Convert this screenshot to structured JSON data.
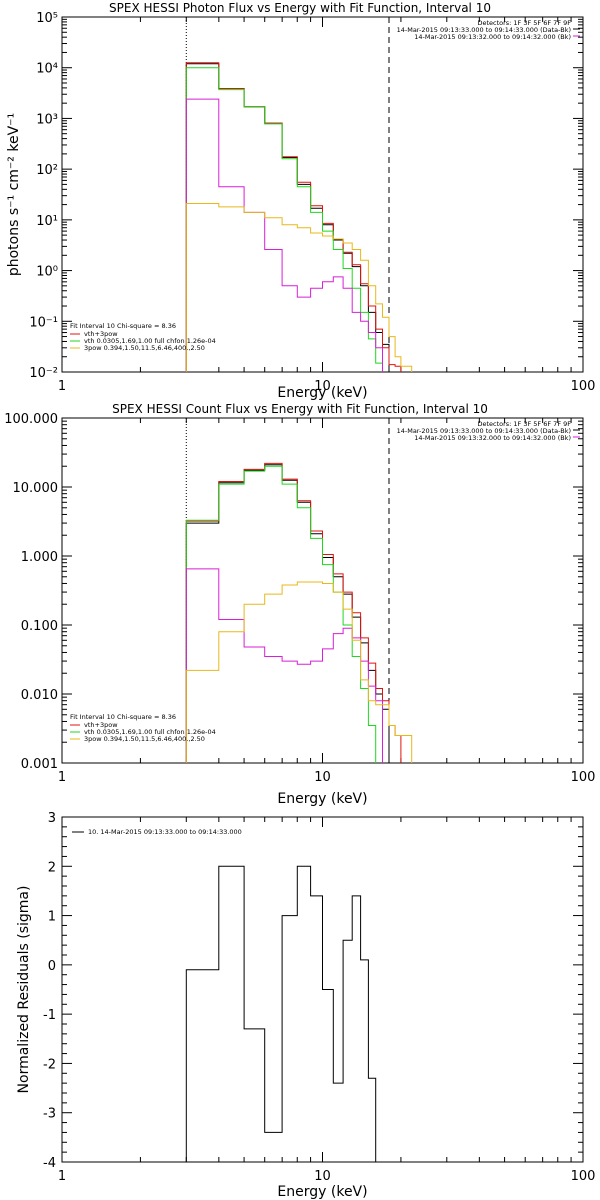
{
  "colors": {
    "black": "#000000",
    "red": "#e0140c",
    "green": "#1ed81e",
    "magenta": "#d81ed8",
    "yellow": "#e8b81a"
  },
  "chart_data": [
    {
      "type": "line",
      "step": true,
      "title": "SPEX HESSI Photon Flux vs Energy with Fit Function, Interval 10",
      "xlabel": "Energy (keV)",
      "ylabel": "photons s⁻¹ cm⁻² keV⁻¹",
      "xscale": "log",
      "yscale": "log",
      "xlim": [
        1,
        100
      ],
      "ylim": [
        0.01,
        100000
      ],
      "xticks": [
        "1",
        "10",
        "100"
      ],
      "yticks": [
        "10⁻²",
        "10⁻¹",
        "10⁰",
        "10¹",
        "10²",
        "10³",
        "10⁴",
        "10⁵"
      ],
      "bin_edges": [
        3,
        4,
        5,
        6,
        7,
        8,
        9,
        10,
        11,
        12,
        13,
        14,
        15,
        16,
        17,
        18,
        19,
        20,
        22
      ],
      "vlines": [
        {
          "x": 3,
          "style": "dotted"
        },
        {
          "x": 18,
          "style": "dashed"
        }
      ],
      "legend_top_right": [
        "Detectors: 1F 3F 5F 6F 7F 9F",
        "14-Mar-2015 09:13:33.000 to 09:14:33.000 (Data-Bk)",
        "14-Mar-2015 09:13:32.000 to 09:14:32.000 (Bk)"
      ],
      "legend_bottom_left": {
        "header": "Fit Interval 10   Chi-square = 8.36",
        "entries": [
          "vth+3pow",
          "vth 0.0305,1.69,1.00  full chfon 1.26e-04",
          "3pow 0.394,1.50,11.5,6.46,400.,2.50"
        ]
      },
      "series": [
        {
          "color": "black",
          "values": [
            12000,
            3900,
            1700,
            800,
            170,
            50,
            17,
            8,
            4,
            2.2,
            1.2,
            0.5,
            0.15,
            0.06,
            0.035,
            null,
            null,
            null
          ]
        },
        {
          "color": "red",
          "values": [
            12500,
            3900,
            1700,
            810,
            175,
            55,
            19,
            8.5,
            4.2,
            2.3,
            1.3,
            0.55,
            0.2,
            0.07,
            0.03,
            0.014,
            0.013,
            null
          ]
        },
        {
          "color": "green",
          "values": [
            10000,
            3700,
            1700,
            780,
            160,
            45,
            14,
            6,
            2.6,
            1.1,
            0.45,
            0.15,
            0.045,
            0.015,
            null,
            null,
            null,
            null
          ]
        },
        {
          "color": "magenta",
          "values": [
            2400,
            45,
            14,
            2.6,
            0.5,
            0.3,
            0.45,
            0.6,
            0.75,
            0.45,
            0.15,
            0.1,
            0.06,
            0.03,
            null,
            null,
            null,
            null
          ]
        },
        {
          "color": "yellow",
          "values": [
            21,
            18,
            14,
            11,
            8,
            7,
            5.5,
            4.8,
            4.2,
            3.5,
            2.6,
            1.6,
            0.5,
            0.22,
            0.12,
            0.05,
            0.02,
            0.013
          ]
        }
      ]
    },
    {
      "type": "line",
      "step": true,
      "title": "SPEX HESSI Count Flux vs Energy with Fit Function, Interval 10",
      "xlabel": "Energy (keV)",
      "ylabel": "",
      "xscale": "log",
      "yscale": "log",
      "xlim": [
        1,
        100
      ],
      "ylim": [
        0.001,
        100
      ],
      "xticks": [
        "1",
        "10",
        "100"
      ],
      "yticks": [
        "0.001",
        "0.010",
        "0.100",
        "1.000",
        "10.000",
        "100.000"
      ],
      "bin_edges": [
        3,
        4,
        5,
        6,
        7,
        8,
        9,
        10,
        11,
        12,
        13,
        14,
        15,
        16,
        17,
        18,
        19,
        20,
        22
      ],
      "vlines": [
        {
          "x": 3,
          "style": "dotted"
        },
        {
          "x": 18,
          "style": "dashed"
        }
      ],
      "legend_top_right": [
        "Detectors: 1F 3F 5F 6F 7F 9F",
        "14-Mar-2015 09:13:33.000 to 09:14:33.000 (Data-Bk)",
        "14-Mar-2015 09:13:32.000 to 09:14:32.000 (Bk)"
      ],
      "legend_bottom_left": {
        "header": "Fit Interval 10   Chi-square = 8.36",
        "entries": [
          "vth+3pow",
          "vth 0.0305,1.69,1.00  full chfon 1.26e-04",
          "3pow 0.394,1.50,11.5,6.46,400.,2.50"
        ]
      },
      "series": [
        {
          "color": "black",
          "values": [
            3.0,
            11.5,
            17.5,
            21,
            12.5,
            6,
            2.1,
            0.95,
            0.5,
            0.28,
            0.13,
            0.055,
            0.022,
            0.01,
            0.006,
            null,
            null,
            null
          ]
        },
        {
          "color": "red",
          "values": [
            3.2,
            12,
            18,
            22,
            13,
            6.3,
            2.3,
            1.05,
            0.55,
            0.3,
            0.15,
            0.065,
            0.028,
            0.012,
            0.008,
            0.0035,
            0.0025,
            null
          ]
        },
        {
          "color": "green",
          "values": [
            3.3,
            11,
            17,
            20,
            11,
            5,
            1.8,
            0.75,
            0.3,
            0.1,
            0.035,
            0.012,
            0.0035,
            null,
            null,
            null,
            null,
            null
          ]
        },
        {
          "color": "magenta",
          "values": [
            0.65,
            0.12,
            0.048,
            0.035,
            0.03,
            0.027,
            0.03,
            0.045,
            0.075,
            0.09,
            0.065,
            0.03,
            0.013,
            0.008,
            null,
            null,
            null,
            null
          ]
        },
        {
          "color": "yellow",
          "values": [
            0.022,
            0.08,
            0.2,
            0.28,
            0.38,
            0.42,
            0.42,
            0.4,
            0.3,
            0.17,
            0.06,
            0.016,
            0.008,
            0.007,
            0.007,
            0.0035,
            0.0025,
            0.0025
          ]
        }
      ]
    },
    {
      "type": "line",
      "step": true,
      "title": "",
      "xlabel": "Energy (keV)",
      "ylabel": "Normalized Residuals (sigma)",
      "xscale": "log",
      "yscale": "linear",
      "xlim": [
        1,
        100
      ],
      "ylim": [
        -4,
        3
      ],
      "xticks": [
        "1",
        "10",
        "100"
      ],
      "yticks": [
        "-4",
        "-3",
        "-2",
        "-1",
        "0",
        "1",
        "2",
        "3"
      ],
      "legend": "10. 14-Mar-2015 09:13:33.000 to 09:14:33.000",
      "bin_edges": [
        3,
        4,
        5,
        6,
        7,
        8,
        9,
        10,
        11,
        12,
        13,
        14,
        15,
        16,
        17,
        18
      ],
      "series": [
        {
          "color": "black",
          "values": [
            -0.1,
            2.0,
            -1.3,
            -3.4,
            1.0,
            2.0,
            1.4,
            -0.5,
            -2.4,
            0.5,
            1.4,
            0.1,
            -2.3,
            -4.2,
            -4.2
          ]
        }
      ]
    }
  ]
}
